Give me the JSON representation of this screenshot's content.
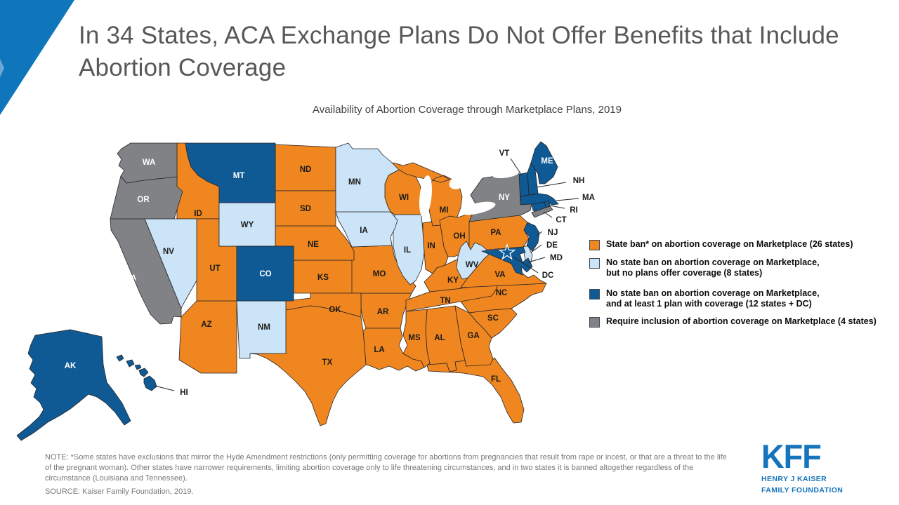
{
  "header": {
    "title": "In 34 States, ACA Exchange Plans Do Not Offer Benefits that Include Abortion Coverage",
    "subtitle": "Availability of Abortion Coverage through Marketplace Plans, 2019"
  },
  "legend": {
    "items": [
      {
        "color_key": "orange",
        "lines": [
          "State ban* on abortion coverage on Marketplace (26 states)"
        ]
      },
      {
        "color_key": "light_blue",
        "lines": [
          "No state ban on abortion coverage on Marketplace,",
          "but no plans offer coverage (8 states)"
        ]
      },
      {
        "color_key": "dark_blue",
        "lines": [
          "No state ban on abortion coverage on Marketplace,",
          "and at least 1 plan with coverage (12 states + DC)"
        ]
      },
      {
        "color_key": "gray",
        "lines": [
          "Require inclusion of abortion coverage on Marketplace (4 states)"
        ]
      }
    ]
  },
  "footer": {
    "note": "NOTE: *Some states have exclusions that mirror the Hyde Amendment restrictions (only permitting coverage for abortions from pregnancies that result from rape or incest, or that are a threat to the life of the pregnant woman). Other states have narrower requirements, limiting abortion coverage only to life threatening circumstances, and in two states it is banned altogether regardless of the circumstance (Louisiana and Tennessee).",
    "source": "SOURCE: Kaiser Family Foundation, 2019."
  },
  "logo": {
    "wordmark": "KFF",
    "line1": "HENRY J KAISER",
    "line2": "FAMILY FOUNDATION"
  },
  "colors": {
    "orange": "#F0861F",
    "light_blue": "#CBE4F7",
    "dark_blue": "#0F5A94",
    "gray": "#808285",
    "accent_blue": "#0F76BC",
    "accent_blue_light": "#6FA8D6",
    "logo_blue": "#1474BC",
    "label_dark": "#1A1A1A",
    "label_white": "#FFFFFF"
  },
  "chart_data": {
    "type": "choropleth",
    "title": "Availability of Abortion Coverage through Marketplace Plans, 2019",
    "region": "United States",
    "categories": [
      {
        "label": "State ban* on abortion coverage on Marketplace (26 states)",
        "count": "26 states",
        "color": "#F0861F",
        "states": [
          "AL",
          "AZ",
          "AR",
          "FL",
          "GA",
          "ID",
          "IN",
          "KS",
          "KY",
          "LA",
          "MI",
          "MS",
          "MO",
          "NE",
          "NC",
          "ND",
          "OH",
          "OK",
          "PA",
          "SC",
          "SD",
          "TN",
          "TX",
          "UT",
          "VA",
          "WI"
        ]
      },
      {
        "label": "No state ban on abortion coverage on Marketplace, but no plans offer coverage (8 states)",
        "count": "8 states",
        "color": "#CBE4F7",
        "states": [
          "DE",
          "IL",
          "IA",
          "MN",
          "NV",
          "NM",
          "WV",
          "WY"
        ]
      },
      {
        "label": "No state ban on abortion coverage on Marketplace, and at least 1 plan with coverage (12 states + DC)",
        "count": "12 states + DC",
        "color": "#0F5A94",
        "states": [
          "AK",
          "CO",
          "CT",
          "HI",
          "MA",
          "MD",
          "ME",
          "MT",
          "NH",
          "NJ",
          "RI",
          "VT",
          "DC"
        ]
      },
      {
        "label": "Require inclusion of abortion coverage on Marketplace (4 states)",
        "count": "4 states",
        "color": "#808285",
        "states": [
          "CA",
          "NY",
          "OR",
          "WA"
        ]
      }
    ]
  }
}
